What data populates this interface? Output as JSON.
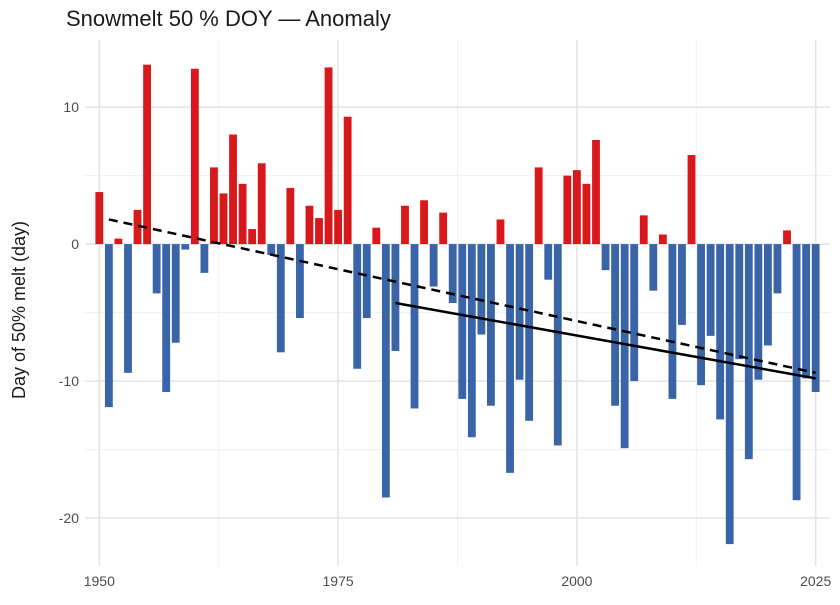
{
  "chart_data": {
    "type": "bar",
    "title": "Snowmelt 50 % DOY — Anomaly",
    "xlabel": "",
    "ylabel": "Day of 50% melt (day)",
    "xlim": [
      1948.5,
      2026.5
    ],
    "ylim": [
      -23.5,
      14.9
    ],
    "x_ticks": [
      1950,
      1975,
      2000,
      2025
    ],
    "y_ticks": [
      10,
      0,
      -10,
      -20
    ],
    "grid": true,
    "legend": "none",
    "colors": {
      "positive": "#d7191c",
      "negative": "#3a64a8",
      "grid_major": "#e3e3e3",
      "grid_minor": "#f0f0f0",
      "trend": "#000000"
    },
    "x": [
      1950,
      1951,
      1952,
      1953,
      1954,
      1955,
      1956,
      1957,
      1958,
      1959,
      1960,
      1961,
      1962,
      1963,
      1964,
      1965,
      1966,
      1967,
      1968,
      1969,
      1970,
      1971,
      1972,
      1973,
      1974,
      1975,
      1976,
      1977,
      1978,
      1979,
      1980,
      1981,
      1982,
      1983,
      1984,
      1985,
      1986,
      1987,
      1988,
      1989,
      1990,
      1991,
      1992,
      1993,
      1994,
      1995,
      1996,
      1997,
      1998,
      1999,
      2000,
      2001,
      2002,
      2003,
      2004,
      2005,
      2006,
      2007,
      2008,
      2009,
      2010,
      2011,
      2012,
      2013,
      2014,
      2015,
      2016,
      2017,
      2018,
      2019,
      2020,
      2021,
      2022,
      2023,
      2024,
      2025
    ],
    "values": [
      3.8,
      -11.9,
      0.4,
      -9.4,
      2.5,
      13.1,
      -3.6,
      -10.8,
      -7.2,
      -0.4,
      12.8,
      -2.1,
      5.6,
      3.7,
      8.0,
      4.4,
      1.1,
      5.9,
      -0.8,
      -7.9,
      4.1,
      -5.4,
      2.8,
      1.9,
      12.9,
      2.5,
      9.3,
      -9.1,
      -5.4,
      1.2,
      -18.5,
      -7.8,
      2.8,
      -12.0,
      3.2,
      -3.1,
      2.3,
      -4.3,
      -11.3,
      -14.1,
      -6.6,
      -11.8,
      1.8,
      -16.7,
      -9.9,
      -12.9,
      5.6,
      -2.6,
      -14.7,
      5.0,
      5.4,
      4.4,
      7.6,
      -1.9,
      -11.8,
      -14.9,
      -10.0,
      2.1,
      -3.4,
      0.7,
      -11.3,
      -5.9,
      6.5,
      -10.3,
      -6.7,
      -12.8,
      -21.9,
      -8.4,
      -15.7,
      -9.9,
      -7.4,
      -3.6,
      1.0,
      -18.7,
      -9.8,
      -10.8
    ],
    "trends": [
      {
        "style": "dashed",
        "x": [
          1951,
          2025
        ],
        "y": [
          1.8,
          -9.4
        ]
      },
      {
        "style": "solid",
        "x": [
          1981,
          2025
        ],
        "y": [
          -4.3,
          -9.8
        ]
      }
    ]
  }
}
